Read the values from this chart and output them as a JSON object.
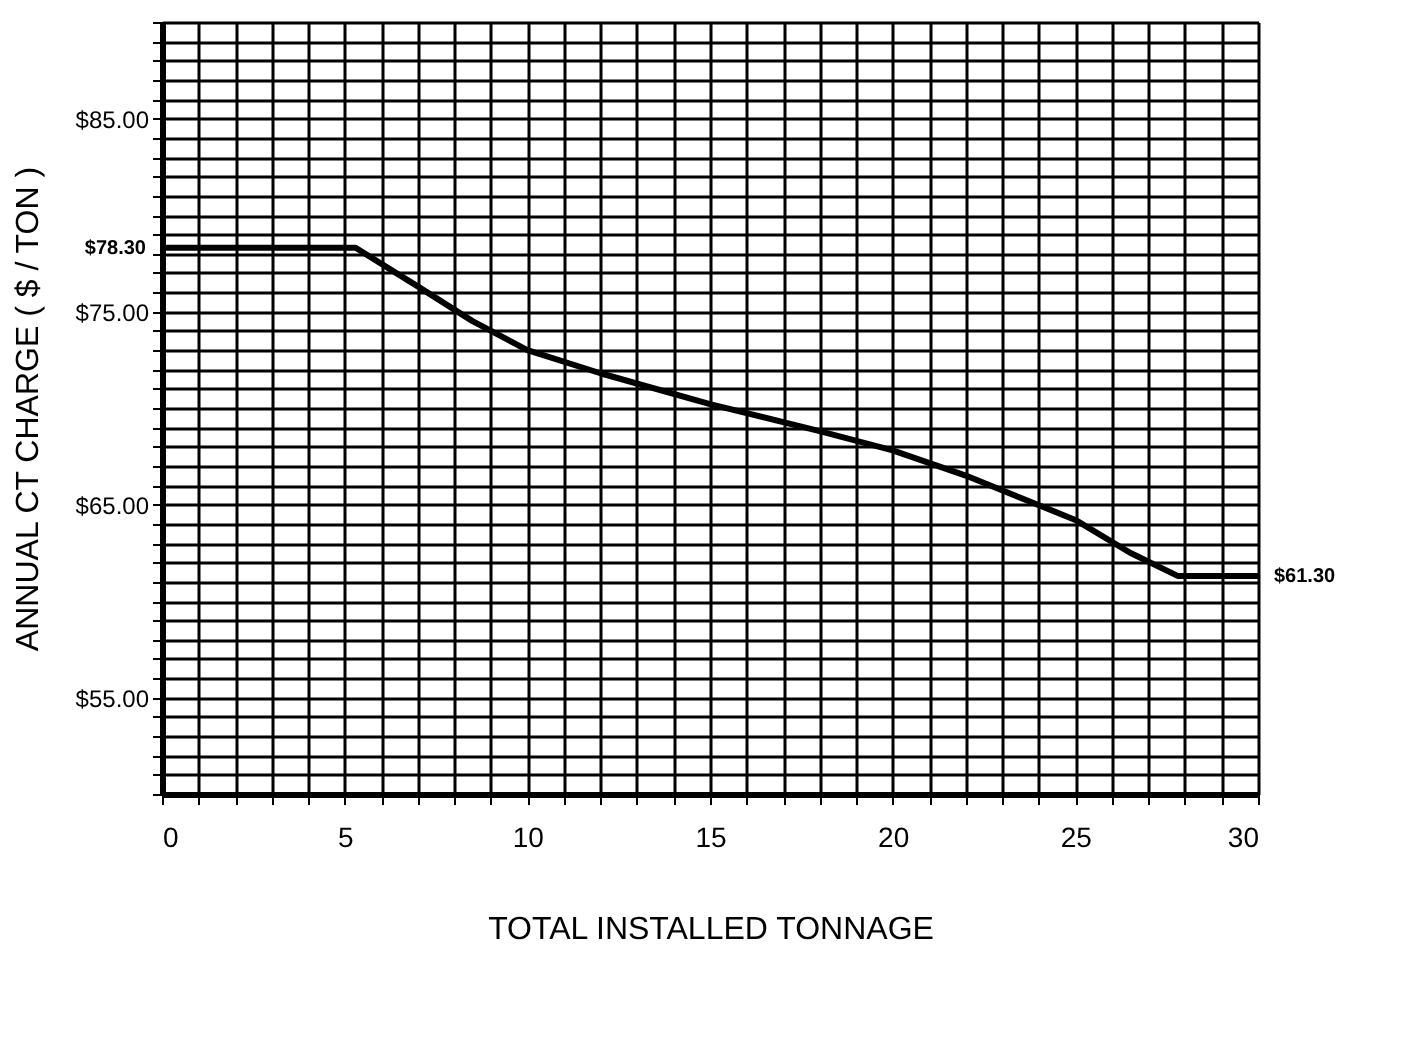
{
  "chart_data": {
    "type": "line",
    "xlabel": "TOTAL INSTALLED TONNAGE",
    "ylabel": "ANNUAL CT CHARGE ( $ / TON )",
    "x": [
      0,
      5.3,
      7,
      8.5,
      10,
      12,
      15,
      18,
      20,
      22,
      25,
      26.5,
      27.8,
      30
    ],
    "series": [
      {
        "color": "#000000",
        "values": [
          78.3,
          78.3,
          76.3,
          74.5,
          73,
          71.8,
          70.2,
          68.8,
          67.8,
          66.5,
          64.2,
          62.5,
          61.3,
          61.3
        ]
      }
    ],
    "xlim": [
      0,
      30
    ],
    "ylim": [
      50,
      90
    ],
    "xticks": [
      0,
      {
        "value": 1,
        "label": null
      },
      {
        "value": 2,
        "label": null
      },
      {
        "value": 3,
        "label": null
      },
      {
        "value": 4,
        "label": null
      },
      5,
      {
        "value": 6,
        "label": null
      },
      {
        "value": 7,
        "label": null
      },
      {
        "value": 8,
        "label": null
      },
      {
        "value": 9,
        "label": null
      },
      10,
      {
        "value": 11,
        "label": null
      },
      {
        "value": 12,
        "label": null
      },
      {
        "value": 13,
        "label": null
      },
      {
        "value": 14,
        "label": null
      },
      15,
      {
        "value": 16,
        "label": null
      },
      {
        "value": 17,
        "label": null
      },
      {
        "value": 18,
        "label": null
      },
      {
        "value": 19,
        "label": null
      },
      20,
      {
        "value": 21,
        "label": null
      },
      {
        "value": 22,
        "label": null
      },
      {
        "value": 23,
        "label": null
      },
      {
        "value": 24,
        "label": null
      },
      25,
      {
        "value": 26,
        "label": null
      },
      {
        "value": 27,
        "label": null
      },
      {
        "value": 28,
        "label": null
      },
      {
        "value": 29,
        "label": null
      },
      30
    ],
    "yticks": [
      {
        "value": 50,
        "label": null
      },
      {
        "value": 51,
        "label": null
      },
      {
        "value": 52,
        "label": null
      },
      {
        "value": 53,
        "label": null
      },
      {
        "value": 54,
        "label": null
      },
      {
        "value": 55,
        "label": "$55.00"
      },
      {
        "value": 56,
        "label": null
      },
      {
        "value": 57,
        "label": null
      },
      {
        "value": 58,
        "label": null
      },
      {
        "value": 59,
        "label": null
      },
      {
        "value": 60,
        "label": null
      },
      {
        "value": 61,
        "label": null
      },
      {
        "value": 62,
        "label": null
      },
      {
        "value": 63,
        "label": null
      },
      {
        "value": 64,
        "label": null
      },
      {
        "value": 65,
        "label": "$65.00"
      },
      {
        "value": 66,
        "label": null
      },
      {
        "value": 67,
        "label": null
      },
      {
        "value": 68,
        "label": null
      },
      {
        "value": 69,
        "label": null
      },
      {
        "value": 70,
        "label": null
      },
      {
        "value": 71,
        "label": null
      },
      {
        "value": 72,
        "label": null
      },
      {
        "value": 73,
        "label": null
      },
      {
        "value": 74,
        "label": null
      },
      {
        "value": 75,
        "label": "$75.00"
      },
      {
        "value": 76,
        "label": null
      },
      {
        "value": 77,
        "label": null
      },
      {
        "value": 78,
        "label": null
      },
      {
        "value": 79,
        "label": null
      },
      {
        "value": 80,
        "label": null
      },
      {
        "value": 81,
        "label": null
      },
      {
        "value": 82,
        "label": null
      },
      {
        "value": 83,
        "label": null
      },
      {
        "value": 84,
        "label": null
      },
      {
        "value": 85,
        "label": "$85.00"
      },
      {
        "value": 86,
        "label": null
      },
      {
        "value": 87,
        "label": null
      },
      {
        "value": 88,
        "label": null
      },
      {
        "value": 89,
        "label": null
      },
      {
        "value": 90,
        "label": null
      }
    ],
    "grid": true,
    "line_style": "solid",
    "annotations": [
      {
        "text": "$78.30",
        "x": 0,
        "y": 78.3
      },
      {
        "text": "$61.30",
        "x": 30,
        "y": 61.3
      }
    ]
  }
}
